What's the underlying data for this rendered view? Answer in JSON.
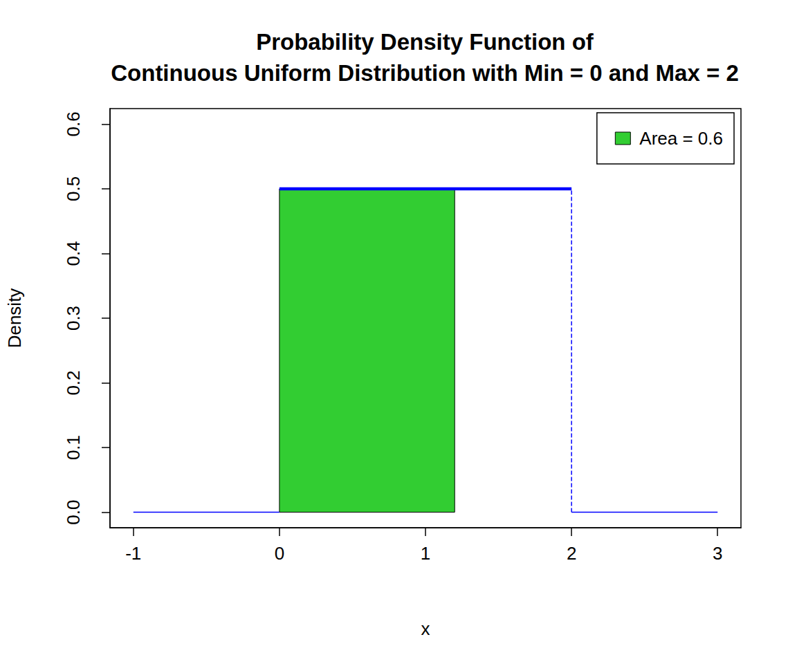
{
  "chart_data": {
    "type": "line",
    "title": "Probability Density Function of\nContinuous Uniform Distribution with Min = 0 and Max = 2",
    "x_label": "x",
    "y_label": "Density",
    "xlim": [
      -1.16,
      3.16
    ],
    "ylim": [
      -0.024,
      0.624
    ],
    "xticks": [
      -1,
      0,
      1,
      2,
      3
    ],
    "yticks": [
      {
        "value": 0,
        "label": "0.0"
      },
      0.1,
      0.2,
      0.3,
      0.4,
      0.5,
      0.6
    ],
    "grid": false,
    "legend": "top-right",
    "series": [
      {
        "type": "area",
        "name": "Area = 0.6",
        "color": "#32cd32",
        "x": [
          0,
          1.2
        ],
        "values": [
          0.5,
          0.5
        ]
      },
      {
        "type": "line",
        "color": "#0000ff",
        "line_style": "solid",
        "x": [
          -1,
          0
        ],
        "values": [
          0,
          0
        ]
      },
      {
        "type": "line",
        "color": "#0000ff",
        "line_style": "bold",
        "x": [
          0,
          2
        ],
        "values": [
          0.5,
          0.5
        ]
      },
      {
        "type": "line",
        "color": "#0000ff",
        "line_style": "dashed",
        "x": [
          2,
          2
        ],
        "values": [
          0,
          0.5
        ]
      },
      {
        "type": "line",
        "color": "#0000ff",
        "line_style": "solid",
        "x": [
          2,
          3
        ],
        "values": [
          0,
          0
        ]
      }
    ]
  }
}
